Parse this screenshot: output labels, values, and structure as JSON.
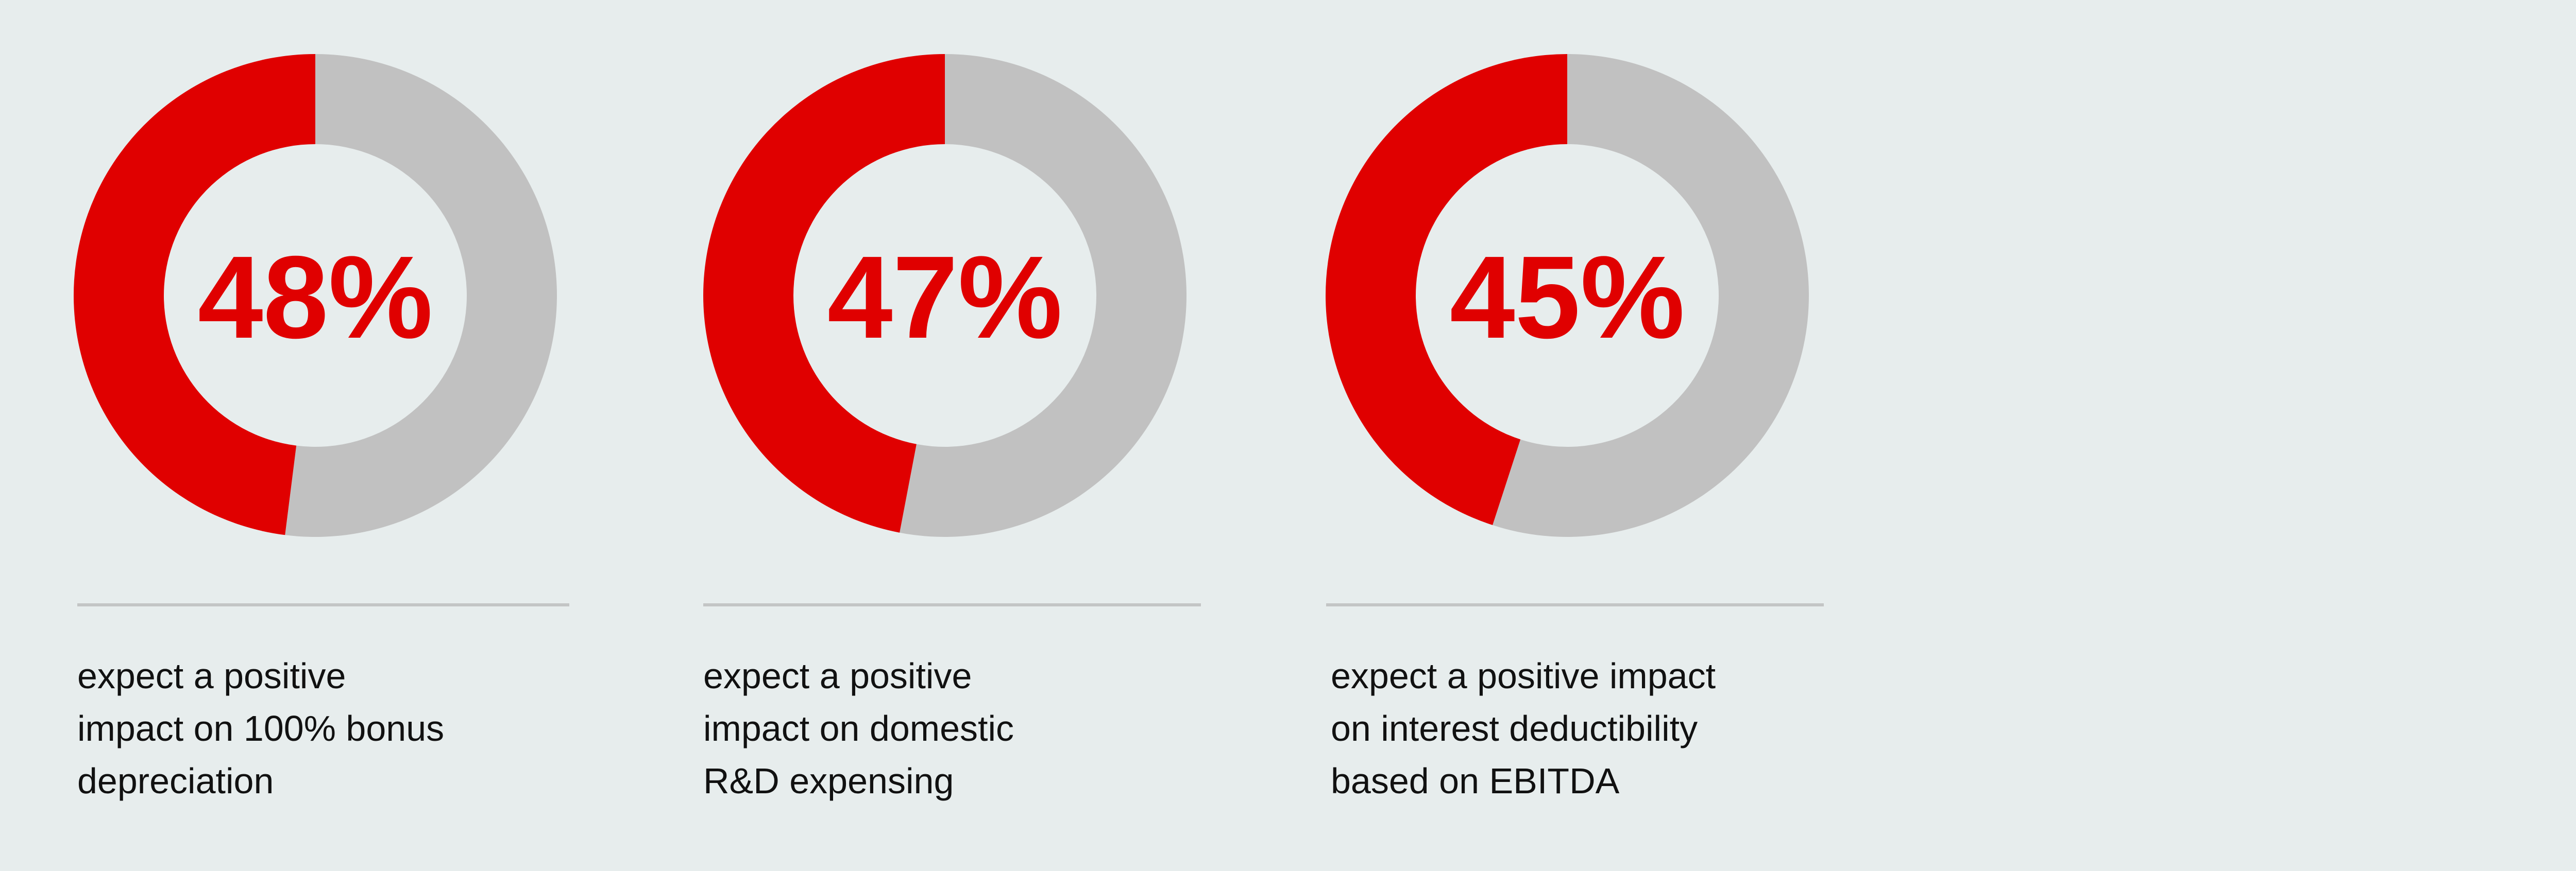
{
  "chart_data": [
    {
      "type": "pie",
      "variant": "donut",
      "value": 48,
      "remainder": 52,
      "label": "48%",
      "caption": [
        "expect a positive",
        "impact on 100% bonus",
        "depreciation"
      ]
    },
    {
      "type": "pie",
      "variant": "donut",
      "value": 47,
      "remainder": 53,
      "label": "47%",
      "caption": [
        "expect a positive",
        "impact on domestic",
        "R&D expensing"
      ]
    },
    {
      "type": "pie",
      "variant": "donut",
      "value": 45,
      "remainder": 55,
      "label": "45%",
      "caption": [
        "expect a positive impact",
        "on interest deductibility",
        "based on EBITDA"
      ]
    }
  ],
  "colors": {
    "highlight": "#e00000",
    "remainder": "#c1c1c1",
    "background": "#e7eded",
    "text": "#111111"
  }
}
